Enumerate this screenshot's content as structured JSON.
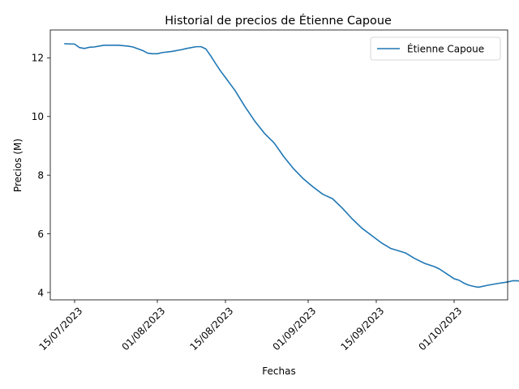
{
  "chart_data": {
    "type": "line",
    "title": "Historial de precios de Étienne Capoue",
    "xlabel": "Fechas",
    "ylabel": "Precios (M)",
    "x_ticks": [
      "15/07/2023",
      "01/08/2023",
      "15/08/2023",
      "01/09/2023",
      "15/09/2023",
      "01/10/2023"
    ],
    "y_ticks": [
      "4",
      "6",
      "8",
      "10",
      "12"
    ],
    "xlim": [
      "2023-07-10",
      "2023-10-12"
    ],
    "ylim": [
      3.75,
      12.95
    ],
    "legend": "top-right",
    "grid": false,
    "colors": {
      "line": "#1f77b4"
    },
    "series": [
      {
        "name": "Étienne Capoue",
        "points": [
          [
            "2023-07-13",
            12.48
          ],
          [
            "2023-07-15",
            12.47
          ],
          [
            "2023-07-16",
            12.35
          ],
          [
            "2023-07-17",
            12.32
          ],
          [
            "2023-07-18",
            12.36
          ],
          [
            "2023-07-19",
            12.37
          ],
          [
            "2023-07-20",
            12.4
          ],
          [
            "2023-07-21",
            12.43
          ],
          [
            "2023-07-24",
            12.43
          ],
          [
            "2023-07-26",
            12.4
          ],
          [
            "2023-07-27",
            12.37
          ],
          [
            "2023-07-29",
            12.25
          ],
          [
            "2023-07-30",
            12.16
          ],
          [
            "2023-07-31",
            12.14
          ],
          [
            "2023-08-01",
            12.14
          ],
          [
            "2023-08-02",
            12.18
          ],
          [
            "2023-08-04",
            12.22
          ],
          [
            "2023-08-06",
            12.28
          ],
          [
            "2023-08-07",
            12.32
          ],
          [
            "2023-08-09",
            12.38
          ],
          [
            "2023-08-10",
            12.38
          ],
          [
            "2023-08-11",
            12.3
          ],
          [
            "2023-08-12",
            12.06
          ],
          [
            "2023-08-13",
            11.8
          ],
          [
            "2023-08-14",
            11.55
          ],
          [
            "2023-08-15",
            11.33
          ],
          [
            "2023-08-17",
            10.88
          ],
          [
            "2023-08-19",
            10.34
          ],
          [
            "2023-08-21",
            9.85
          ],
          [
            "2023-08-23",
            9.43
          ],
          [
            "2023-08-25",
            9.1
          ],
          [
            "2023-08-27",
            8.63
          ],
          [
            "2023-08-29",
            8.22
          ],
          [
            "2023-08-31",
            7.88
          ],
          [
            "2023-09-02",
            7.6
          ],
          [
            "2023-09-04",
            7.35
          ],
          [
            "2023-09-06",
            7.2
          ],
          [
            "2023-09-08",
            6.88
          ],
          [
            "2023-09-10",
            6.52
          ],
          [
            "2023-09-12",
            6.2
          ],
          [
            "2023-09-14",
            5.95
          ],
          [
            "2023-09-16",
            5.7
          ],
          [
            "2023-09-18",
            5.5
          ],
          [
            "2023-09-20",
            5.4
          ],
          [
            "2023-09-21",
            5.35
          ],
          [
            "2023-09-23",
            5.15
          ],
          [
            "2023-09-25",
            4.99
          ],
          [
            "2023-09-27",
            4.88
          ],
          [
            "2023-09-28",
            4.8
          ],
          [
            "2023-09-30",
            4.58
          ],
          [
            "2023-10-01",
            4.47
          ],
          [
            "2023-10-02",
            4.42
          ],
          [
            "2023-10-03",
            4.32
          ],
          [
            "2023-10-04",
            4.25
          ],
          [
            "2023-10-05",
            4.21
          ],
          [
            "2023-10-06",
            4.18
          ],
          [
            "2023-10-08",
            4.25
          ],
          [
            "2023-10-10",
            4.31
          ],
          [
            "2023-10-12",
            4.36
          ],
          [
            "2023-10-13",
            4.4
          ],
          [
            "2023-10-14",
            4.4
          ],
          [
            "2023-10-15",
            4.37
          ]
        ]
      }
    ]
  }
}
